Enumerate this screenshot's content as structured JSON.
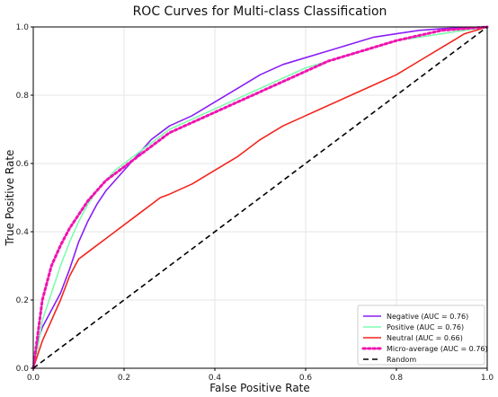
{
  "chart_data": {
    "type": "line",
    "title": "ROC Curves for Multi-class Classification",
    "xlabel": "False Positive Rate",
    "ylabel": "True Positive Rate",
    "xlim": [
      0.0,
      1.0
    ],
    "ylim": [
      0.0,
      1.0
    ],
    "xticks": [
      "0.0",
      "0.2",
      "0.4",
      "0.6",
      "0.8",
      "1.0"
    ],
    "yticks": [
      "0.0",
      "0.2",
      "0.4",
      "0.6",
      "0.8",
      "1.0"
    ],
    "grid": true,
    "legend_position": "lower-right",
    "series": [
      {
        "name": "Negative (AUC = 0.76)",
        "color": "#8b1ef5",
        "style": "solid",
        "x": [
          0.0,
          0.01,
          0.02,
          0.04,
          0.06,
          0.08,
          0.1,
          0.12,
          0.14,
          0.16,
          0.18,
          0.2,
          0.22,
          0.24,
          0.26,
          0.28,
          0.3,
          0.35,
          0.4,
          0.45,
          0.5,
          0.55,
          0.6,
          0.65,
          0.7,
          0.75,
          0.8,
          0.85,
          0.9,
          0.95,
          1.0
        ],
        "y": [
          0.0,
          0.08,
          0.12,
          0.17,
          0.22,
          0.29,
          0.37,
          0.43,
          0.48,
          0.52,
          0.55,
          0.58,
          0.61,
          0.64,
          0.67,
          0.69,
          0.71,
          0.74,
          0.78,
          0.82,
          0.86,
          0.89,
          0.91,
          0.93,
          0.95,
          0.97,
          0.98,
          0.99,
          0.995,
          0.998,
          1.0
        ]
      },
      {
        "name": "Positive (AUC = 0.76)",
        "color": "#7ffcb0",
        "style": "solid",
        "x": [
          0.0,
          0.01,
          0.02,
          0.04,
          0.06,
          0.08,
          0.1,
          0.12,
          0.14,
          0.16,
          0.18,
          0.2,
          0.22,
          0.24,
          0.26,
          0.28,
          0.3,
          0.35,
          0.4,
          0.45,
          0.5,
          0.55,
          0.6,
          0.65,
          0.7,
          0.75,
          0.8,
          0.85,
          0.9,
          0.95,
          1.0
        ],
        "y": [
          0.0,
          0.06,
          0.14,
          0.22,
          0.3,
          0.37,
          0.43,
          0.48,
          0.52,
          0.55,
          0.58,
          0.6,
          0.62,
          0.64,
          0.66,
          0.68,
          0.7,
          0.73,
          0.76,
          0.79,
          0.82,
          0.85,
          0.88,
          0.9,
          0.92,
          0.94,
          0.96,
          0.97,
          0.98,
          0.99,
          1.0
        ]
      },
      {
        "name": "Neutral (AUC = 0.66)",
        "color": "#f2251c",
        "style": "solid",
        "x": [
          0.0,
          0.01,
          0.02,
          0.04,
          0.06,
          0.08,
          0.1,
          0.12,
          0.14,
          0.16,
          0.18,
          0.2,
          0.22,
          0.24,
          0.26,
          0.28,
          0.3,
          0.35,
          0.4,
          0.45,
          0.5,
          0.55,
          0.6,
          0.65,
          0.7,
          0.75,
          0.8,
          0.85,
          0.9,
          0.95,
          1.0
        ],
        "y": [
          0.0,
          0.04,
          0.08,
          0.14,
          0.2,
          0.27,
          0.32,
          0.34,
          0.36,
          0.38,
          0.4,
          0.42,
          0.44,
          0.46,
          0.48,
          0.5,
          0.51,
          0.54,
          0.58,
          0.62,
          0.67,
          0.71,
          0.74,
          0.77,
          0.8,
          0.83,
          0.86,
          0.9,
          0.94,
          0.98,
          1.0
        ]
      },
      {
        "name": "Micro-average (AUC = 0.76)",
        "color": "#f013b0",
        "style": "dotted",
        "x": [
          0.0,
          0.01,
          0.02,
          0.04,
          0.06,
          0.08,
          0.1,
          0.12,
          0.14,
          0.16,
          0.18,
          0.2,
          0.22,
          0.24,
          0.26,
          0.28,
          0.3,
          0.35,
          0.4,
          0.45,
          0.5,
          0.55,
          0.6,
          0.65,
          0.7,
          0.75,
          0.8,
          0.85,
          0.9,
          0.95,
          1.0
        ],
        "y": [
          0.0,
          0.1,
          0.2,
          0.3,
          0.36,
          0.41,
          0.45,
          0.49,
          0.52,
          0.55,
          0.57,
          0.59,
          0.61,
          0.63,
          0.65,
          0.67,
          0.69,
          0.72,
          0.75,
          0.78,
          0.81,
          0.84,
          0.87,
          0.9,
          0.92,
          0.94,
          0.96,
          0.975,
          0.99,
          0.995,
          1.0
        ]
      },
      {
        "name": "Random",
        "color": "#000000",
        "style": "dashed",
        "x": [
          0.0,
          1.0
        ],
        "y": [
          0.0,
          1.0
        ]
      }
    ]
  }
}
